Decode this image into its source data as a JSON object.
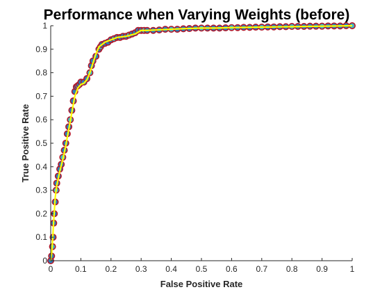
{
  "chart_data": {
    "type": "line",
    "title": "Performance when Varying Weights (before)",
    "xlabel": "False Positive Rate",
    "ylabel": "True Positive Rate",
    "xlim": [
      0,
      1
    ],
    "ylim": [
      0,
      1
    ],
    "xticks": [
      "0",
      "0.1",
      "0.2",
      "0.3",
      "0.4",
      "0.5",
      "0.6",
      "0.7",
      "0.8",
      "0.9",
      "1"
    ],
    "yticks": [
      "0",
      "0.1",
      "0.2",
      "0.3",
      "0.4",
      "0.5",
      "0.6",
      "0.7",
      "0.8",
      "0.9",
      "1"
    ],
    "grid": false,
    "legend": "none",
    "colors": {
      "marker_edge": "#b2182b",
      "marker_fill": "#2c7fb8",
      "marker_fill_alt": "#41b6c4",
      "line": "#ffff00"
    },
    "series": [
      {
        "style": "markers",
        "x": [
          0.0,
          0.003,
          0.006,
          0.008,
          0.01,
          0.012,
          0.015,
          0.018,
          0.02,
          0.025,
          0.03,
          0.035,
          0.04,
          0.045,
          0.05,
          0.055,
          0.06,
          0.065,
          0.07,
          0.075,
          0.08,
          0.085,
          0.09,
          0.095,
          0.1,
          0.11,
          0.12,
          0.13,
          0.135,
          0.14,
          0.15,
          0.16,
          0.165,
          0.17,
          0.18,
          0.19,
          0.2,
          0.21,
          0.22,
          0.23,
          0.24,
          0.25,
          0.26,
          0.27,
          0.28,
          0.29,
          0.3,
          0.31,
          0.32,
          0.34,
          0.36,
          0.38,
          0.4,
          0.42,
          0.44,
          0.46,
          0.48,
          0.5,
          0.52,
          0.54,
          0.56,
          0.58,
          0.6,
          0.62,
          0.64,
          0.66,
          0.68,
          0.7,
          0.72,
          0.74,
          0.76,
          0.78,
          0.8,
          0.82,
          0.84,
          0.86,
          0.88,
          0.9,
          0.92,
          0.94,
          0.96,
          0.98,
          1.0
        ],
        "y": [
          0.0,
          0.02,
          0.06,
          0.1,
          0.16,
          0.2,
          0.25,
          0.3,
          0.33,
          0.36,
          0.39,
          0.41,
          0.44,
          0.47,
          0.5,
          0.54,
          0.57,
          0.6,
          0.64,
          0.68,
          0.72,
          0.74,
          0.745,
          0.75,
          0.76,
          0.76,
          0.775,
          0.8,
          0.83,
          0.85,
          0.87,
          0.9,
          0.91,
          0.92,
          0.925,
          0.93,
          0.94,
          0.945,
          0.95,
          0.95,
          0.955,
          0.955,
          0.96,
          0.965,
          0.97,
          0.98,
          0.98,
          0.98,
          0.98,
          0.98,
          0.982,
          0.985,
          0.985,
          0.985,
          0.987,
          0.988,
          0.99,
          0.99,
          0.99,
          0.99,
          0.99,
          0.991,
          0.992,
          0.992,
          0.993,
          0.993,
          0.994,
          0.994,
          0.995,
          0.995,
          0.996,
          0.996,
          0.997,
          0.997,
          0.997,
          0.998,
          0.998,
          0.998,
          0.999,
          0.999,
          0.999,
          1.0,
          1.0
        ]
      },
      {
        "style": "line",
        "x": [
          0.0,
          0.003,
          0.006,
          0.01,
          0.015,
          0.02,
          0.03,
          0.04,
          0.05,
          0.06,
          0.07,
          0.08,
          0.09,
          0.1,
          0.11,
          0.12,
          0.13,
          0.14,
          0.15,
          0.16,
          0.17,
          0.18,
          0.2,
          0.22,
          0.25,
          0.28,
          0.3,
          0.32,
          0.35,
          0.4,
          0.45,
          0.5,
          0.55,
          0.6,
          0.65,
          0.7,
          0.75,
          0.8,
          0.85,
          0.9,
          0.95,
          1.0
        ],
        "y": [
          0.0,
          0.03,
          0.08,
          0.17,
          0.27,
          0.32,
          0.38,
          0.43,
          0.49,
          0.56,
          0.63,
          0.7,
          0.735,
          0.75,
          0.755,
          0.77,
          0.8,
          0.84,
          0.88,
          0.91,
          0.92,
          0.93,
          0.94,
          0.95,
          0.955,
          0.965,
          0.98,
          0.98,
          0.982,
          0.985,
          0.988,
          0.99,
          0.99,
          0.992,
          0.993,
          0.994,
          0.995,
          0.996,
          0.997,
          0.998,
          0.999,
          1.0
        ]
      }
    ]
  }
}
